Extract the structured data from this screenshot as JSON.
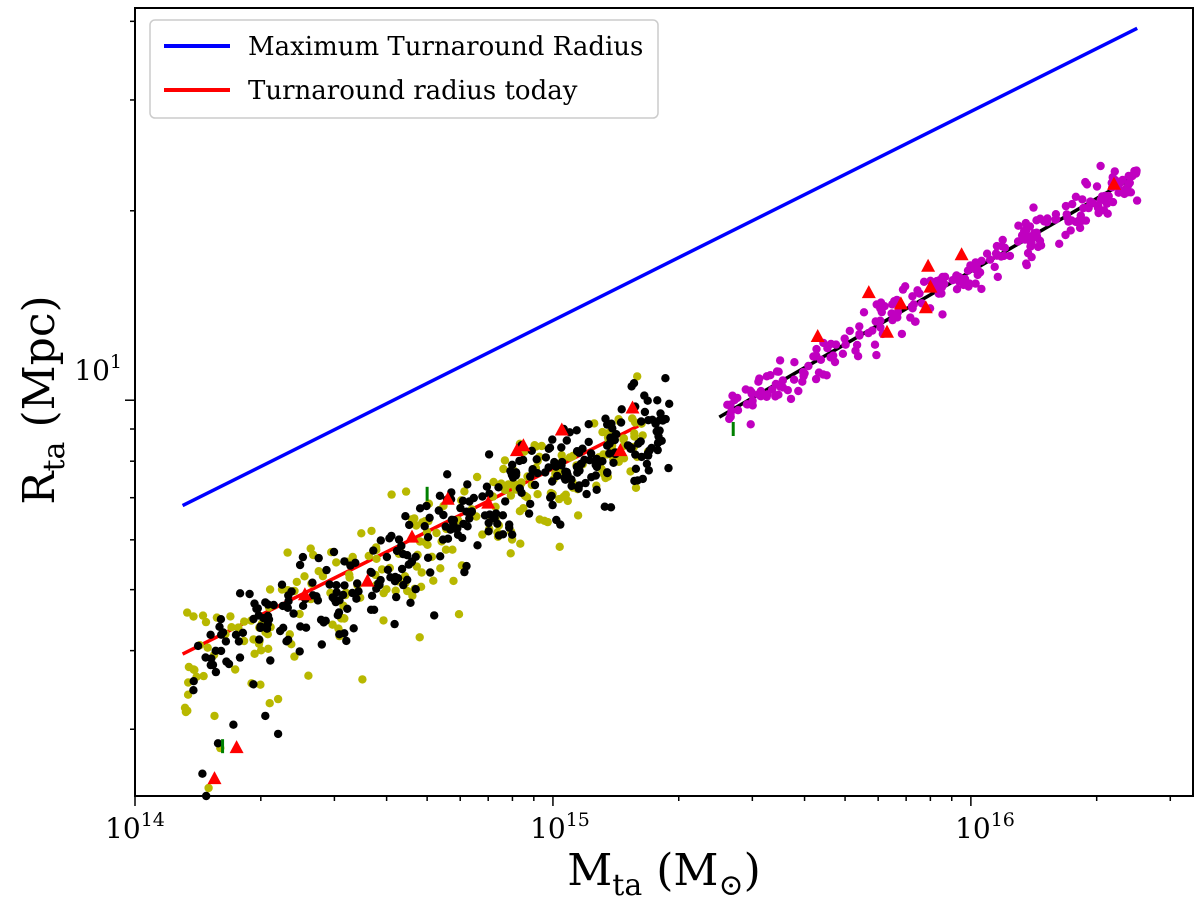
{
  "chart_data": {
    "type": "scatter",
    "title": "",
    "xscale": "log",
    "yscale": "log",
    "xlim": [
      100000000000000.0,
      3.4e+16
    ],
    "ylim": [
      2.35,
      42.0
    ],
    "xlabel": {
      "main": "M",
      "sub": "ta",
      "unit_open": " (M",
      "unit_sym": "⊙",
      "unit_close": ")"
    },
    "ylabel": {
      "main": "R",
      "sub": "ta",
      "unit": " (Mpc)"
    },
    "x_major_ticks": [
      {
        "value": 100000000000000.0,
        "base": "10",
        "exp": "14"
      },
      {
        "value": 1000000000000000.0,
        "base": "10",
        "exp": "15"
      },
      {
        "value": 1e+16,
        "base": "10",
        "exp": "16"
      }
    ],
    "y_major_ticks": [
      {
        "value": 10,
        "base": "10",
        "exp": "1"
      }
    ],
    "legend": {
      "position": "upper-left",
      "entries": [
        {
          "label": "Maximum Turnaround Radius",
          "color": "#0000ff"
        },
        {
          "label": "Turnaround radius today",
          "color": "#ff0000"
        }
      ]
    },
    "series": [
      {
        "name": "Maximum Turnaround Radius",
        "kind": "line",
        "color": "#0000ff",
        "x": [
          130000000000000.0,
          2.5e+16
        ],
        "y": [
          6.8,
          39.0
        ]
      },
      {
        "name": "Turnaround radius today",
        "kind": "line",
        "color": "#ff0000",
        "x": [
          130000000000000.0,
          1600000000000000.0
        ],
        "y": [
          3.95,
          9.1
        ]
      },
      {
        "name": "fit",
        "kind": "line",
        "color": "#000000",
        "x": [
          2500000000000000.0,
          2.5e+16
        ],
        "y": [
          9.4,
          22.8
        ]
      },
      {
        "name": "black halos",
        "kind": "scatter",
        "color": "#000000",
        "count": 330,
        "xrange": [
          130000000000000.0,
          1900000000000000.0
        ],
        "relation": {
          "r0": 3.8,
          "m0": 130000000000000.0,
          "slope": 0.33
        },
        "scatter_dex": 0.04,
        "outliers": [
          [
            145000000000000.0,
            2.55
          ],
          [
            148000000000000.0,
            2.35
          ],
          [
            158000000000000.0,
            2.85
          ],
          [
            172000000000000.0,
            3.05
          ],
          [
            205000000000000.0,
            3.15
          ],
          [
            220000000000000.0,
            2.95
          ],
          [
            520000000000000.0,
            4.55
          ]
        ]
      },
      {
        "name": "yellow halos",
        "kind": "scatter",
        "color": "#b8b800",
        "count": 240,
        "xrange": [
          130000000000000.0,
          1700000000000000.0
        ],
        "relation": {
          "r0": 3.8,
          "m0": 130000000000000.0,
          "slope": 0.33
        },
        "scatter_dex": 0.045,
        "outliers": [
          [
            150000000000000.0,
            2.42
          ],
          [
            155000000000000.0,
            3.15
          ],
          [
            160000000000000.0,
            2.8
          ],
          [
            210000000000000.0,
            3.3
          ],
          [
            220000000000000.0,
            3.35
          ],
          [
            190000000000000.0,
            3.55
          ],
          [
            350000000000000.0,
            3.6
          ],
          [
            480000000000000.0,
            4.2
          ],
          [
            260000000000000.0,
            3.65
          ]
        ]
      },
      {
        "name": "magenta halos",
        "kind": "scatter",
        "color": "#c000c0",
        "count": 260,
        "xrange": [
          2600000000000000.0,
          2.5e+16
        ],
        "relation": {
          "r0": 9.4,
          "m0": 2500000000000000.0,
          "slope": 0.385
        },
        "scatter_dex": 0.018
      },
      {
        "name": "red triangles",
        "kind": "triangles",
        "color": "#ff0000",
        "points": [
          [
            155000000000000.0,
            2.5
          ],
          [
            175000000000000.0,
            2.8
          ],
          [
            255000000000000.0,
            4.9
          ],
          [
            360000000000000.0,
            5.15
          ],
          [
            460000000000000.0,
            6.05
          ],
          [
            560000000000000.0,
            6.95
          ],
          [
            700000000000000.0,
            6.85
          ],
          [
            820000000000000.0,
            8.3
          ],
          [
            850000000000000.0,
            8.45
          ],
          [
            1050000000000000.0,
            8.95
          ],
          [
            1450000000000000.0,
            8.3
          ],
          [
            1550000000000000.0,
            9.7
          ],
          [
            4300000000000000.0,
            12.6
          ],
          [
            6300000000000000.0,
            12.8
          ],
          [
            6800000000000000.0,
            14.2
          ],
          [
            7800000000000000.0,
            14.0
          ],
          [
            8000000000000000.0,
            15.1
          ],
          [
            7900000000000000.0,
            16.3
          ],
          [
            9500000000000000.0,
            17.0
          ],
          [
            2.2e+16,
            22.0
          ],
          [
            5700000000000000.0,
            14.8
          ]
        ]
      },
      {
        "name": "green error bars",
        "kind": "errorbars",
        "color": "#008000",
        "points": [
          [
            162000000000000.0,
            2.82
          ],
          [
            500000000000000.0,
            7.1
          ],
          [
            2700000000000000.0,
            9.0
          ]
        ]
      }
    ]
  }
}
